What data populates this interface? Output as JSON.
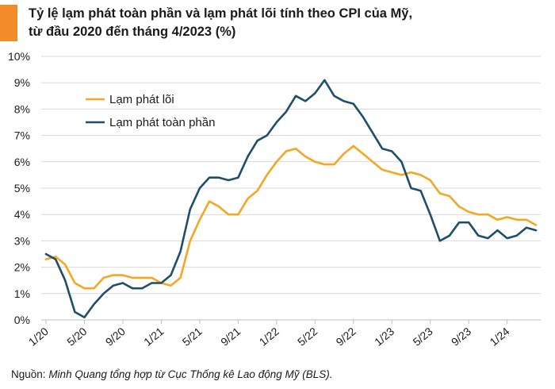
{
  "title_line1": "Tỷ lệ lạm phát toàn phần và lạm phát lõi tính theo CPI của Mỹ,",
  "title_line2": "từ đầu 2020 đến tháng 4/2023 (%)",
  "source_label": "Nguồn:",
  "source_text": "Minh Quang tổng hợp từ Cục Thống kê Lao động Mỹ (BLS).",
  "colors": {
    "accent": "#f28c28",
    "core": "#f5a623",
    "headline": "#1f4e6b",
    "grid": "#d9d9d9"
  },
  "chart_data": {
    "type": "line",
    "title": "Tỷ lệ lạm phát toàn phần và lạm phát lõi tính theo CPI của Mỹ, từ đầu 2020 đến tháng 4/2023 (%)",
    "xlabel": "",
    "ylabel": "",
    "ylim": [
      0,
      10
    ],
    "y_ticks": [
      "0%",
      "1%",
      "2%",
      "3%",
      "4%",
      "5%",
      "6%",
      "7%",
      "8%",
      "9%",
      "10%"
    ],
    "x_tick_labels": [
      "1/20",
      "5/20",
      "9/20",
      "1/21",
      "5/21",
      "9/21",
      "1/22",
      "5/22",
      "9/22",
      "1/23",
      "5/23",
      "9/23",
      "1/24"
    ],
    "grid": "horizontal",
    "legend_position": "top-left",
    "series": [
      {
        "name": "Lạm phát lõi",
        "color": "#f5a623",
        "values": [
          2.3,
          2.4,
          2.1,
          1.4,
          1.2,
          1.2,
          1.6,
          1.7,
          1.7,
          1.6,
          1.6,
          1.6,
          1.4,
          1.3,
          1.6,
          3.0,
          3.8,
          4.5,
          4.3,
          4.0,
          4.0,
          4.6,
          4.9,
          5.5,
          6.0,
          6.4,
          6.5,
          6.2,
          6.0,
          5.9,
          5.9,
          6.3,
          6.6,
          6.3,
          6.0,
          5.7,
          5.6,
          5.5,
          5.6,
          5.5,
          5.3,
          4.8,
          4.7,
          4.3,
          4.1,
          4.0,
          4.0,
          3.8,
          3.9,
          3.8,
          3.8,
          3.6
        ]
      },
      {
        "name": "Lạm phát toàn phần",
        "color": "#1f4e6b",
        "values": [
          2.5,
          2.3,
          1.5,
          0.3,
          0.1,
          0.6,
          1.0,
          1.3,
          1.4,
          1.2,
          1.2,
          1.4,
          1.4,
          1.7,
          2.6,
          4.2,
          5.0,
          5.4,
          5.4,
          5.3,
          5.4,
          6.2,
          6.8,
          7.0,
          7.5,
          7.9,
          8.5,
          8.3,
          8.6,
          9.1,
          8.5,
          8.3,
          8.2,
          7.7,
          7.1,
          6.5,
          6.4,
          6.0,
          5.0,
          4.9,
          4.0,
          3.0,
          3.2,
          3.7,
          3.7,
          3.2,
          3.1,
          3.4,
          3.1,
          3.2,
          3.5,
          3.4
        ]
      }
    ]
  }
}
